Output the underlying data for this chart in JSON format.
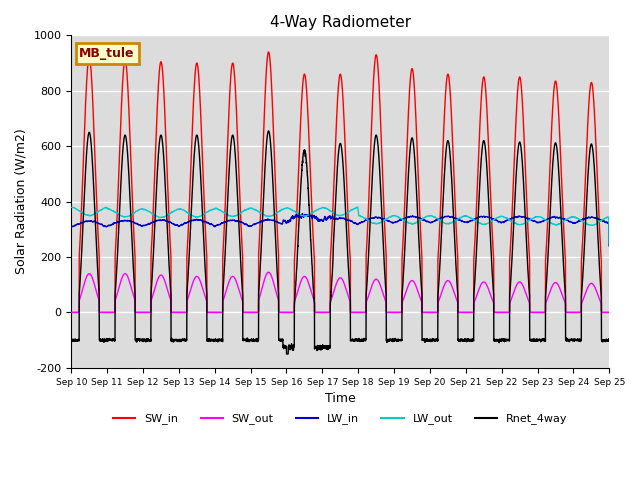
{
  "title": "4-Way Radiometer",
  "xlabel": "Time",
  "ylabel": "Solar Radiation (W/m2)",
  "ylim": [
    -200,
    1000
  ],
  "n_days": 15,
  "xtick_labels": [
    "Sep 10",
    "Sep 11",
    "Sep 12",
    "Sep 13",
    "Sep 14",
    "Sep 15",
    "Sep 16",
    "Sep 17",
    "Sep 18",
    "Sep 19",
    "Sep 20",
    "Sep 21",
    "Sep 22",
    "Sep 23",
    "Sep 24",
    "Sep 25"
  ],
  "colors": {
    "SW_in": "#ff0000",
    "SW_out": "#ff00ff",
    "LW_in": "#0000cc",
    "LW_out": "#00cccc",
    "Rnet_4way": "#000000"
  },
  "legend_label": "MB_tule",
  "legend_bg": "#ffffcc",
  "legend_border": "#cc8800",
  "bg_color": "#dcdcdc",
  "grid_color": "#ffffff",
  "sw_in_peaks": [
    920,
    910,
    905,
    900,
    900,
    940,
    860,
    860,
    930,
    880,
    860,
    850,
    850,
    835,
    830
  ],
  "sw_out_peaks": [
    140,
    140,
    135,
    130,
    130,
    145,
    130,
    125,
    120,
    115,
    115,
    110,
    110,
    108,
    105
  ],
  "rnet_peaks": [
    650,
    640,
    640,
    640,
    640,
    655,
    610,
    610,
    640,
    630,
    620,
    620,
    615,
    612,
    608
  ],
  "lw_out_base": [
    385,
    380,
    378,
    380,
    382,
    382,
    383,
    385,
    385,
    385,
    385,
    383,
    382,
    382,
    380
  ],
  "lw_in_base": [
    302,
    304,
    305,
    306,
    305,
    306,
    308,
    312,
    315,
    318,
    318,
    318,
    318,
    316,
    315
  ],
  "lw": 1.0,
  "pts_per_day": 288
}
